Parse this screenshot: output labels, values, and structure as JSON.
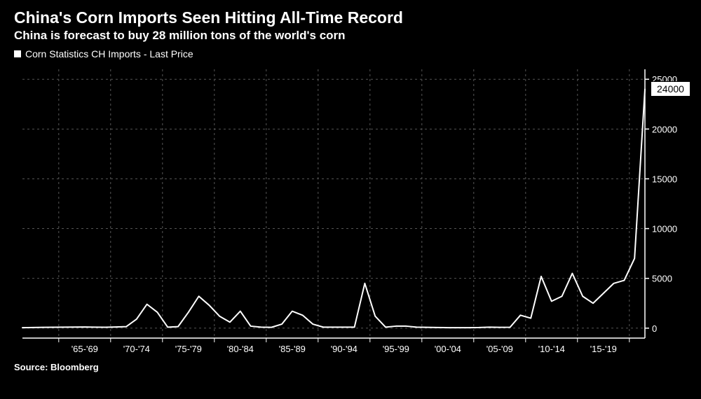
{
  "header": {
    "title": "China's Corn Imports Seen Hitting All-Time Record",
    "subtitle": "China is forecast to buy 28 million tons of the world's corn"
  },
  "legend": {
    "label": "Corn Statistics CH Imports - Last Price",
    "marker_color": "#ffffff"
  },
  "chart": {
    "type": "line",
    "background_color": "#000000",
    "line_color": "#ffffff",
    "line_width": 2,
    "grid_color": "#555555",
    "grid_dash": "3,4",
    "axis_color": "#ffffff",
    "tick_color": "#ffffff",
    "tick_fontsize": 13,
    "y": {
      "min": -1000,
      "max": 26000,
      "ticks": [
        0,
        5000,
        10000,
        15000,
        20000,
        25000
      ],
      "side": "right"
    },
    "x": {
      "group_labels": [
        "'65-'69",
        "'70-'74",
        "'75-'79",
        "'80-'84",
        "'85-'89",
        "'90-'94",
        "'95-'99",
        "'00-'04",
        "'05-'09",
        "'10-'14",
        "'15-'19"
      ],
      "years_start": 1961,
      "years_end": 2021
    },
    "last_value_badge": "24000",
    "data": [
      {
        "year": 1961,
        "value": 50
      },
      {
        "year": 1962,
        "value": 60
      },
      {
        "year": 1963,
        "value": 80
      },
      {
        "year": 1964,
        "value": 90
      },
      {
        "year": 1965,
        "value": 100
      },
      {
        "year": 1966,
        "value": 110
      },
      {
        "year": 1967,
        "value": 120
      },
      {
        "year": 1968,
        "value": 100
      },
      {
        "year": 1969,
        "value": 90
      },
      {
        "year": 1970,
        "value": 120
      },
      {
        "year": 1971,
        "value": 150
      },
      {
        "year": 1972,
        "value": 900
      },
      {
        "year": 1973,
        "value": 2400
      },
      {
        "year": 1974,
        "value": 1600
      },
      {
        "year": 1975,
        "value": 100
      },
      {
        "year": 1976,
        "value": 150
      },
      {
        "year": 1977,
        "value": 1600
      },
      {
        "year": 1978,
        "value": 3200
      },
      {
        "year": 1979,
        "value": 2300
      },
      {
        "year": 1980,
        "value": 1200
      },
      {
        "year": 1981,
        "value": 600
      },
      {
        "year": 1982,
        "value": 1700
      },
      {
        "year": 1983,
        "value": 200
      },
      {
        "year": 1984,
        "value": 100
      },
      {
        "year": 1985,
        "value": 80
      },
      {
        "year": 1986,
        "value": 400
      },
      {
        "year": 1987,
        "value": 1700
      },
      {
        "year": 1988,
        "value": 1300
      },
      {
        "year": 1989,
        "value": 400
      },
      {
        "year": 1990,
        "value": 100
      },
      {
        "year": 1991,
        "value": 100
      },
      {
        "year": 1992,
        "value": 100
      },
      {
        "year": 1993,
        "value": 100
      },
      {
        "year": 1994,
        "value": 4500
      },
      {
        "year": 1995,
        "value": 1200
      },
      {
        "year": 1996,
        "value": 100
      },
      {
        "year": 1997,
        "value": 200
      },
      {
        "year": 1998,
        "value": 200
      },
      {
        "year": 1999,
        "value": 100
      },
      {
        "year": 2000,
        "value": 80
      },
      {
        "year": 2001,
        "value": 60
      },
      {
        "year": 2002,
        "value": 50
      },
      {
        "year": 2003,
        "value": 50
      },
      {
        "year": 2004,
        "value": 50
      },
      {
        "year": 2005,
        "value": 60
      },
      {
        "year": 2006,
        "value": 100
      },
      {
        "year": 2007,
        "value": 80
      },
      {
        "year": 2008,
        "value": 90
      },
      {
        "year": 2009,
        "value": 1300
      },
      {
        "year": 2010,
        "value": 1000
      },
      {
        "year": 2011,
        "value": 5200
      },
      {
        "year": 2012,
        "value": 2700
      },
      {
        "year": 2013,
        "value": 3200
      },
      {
        "year": 2014,
        "value": 5500
      },
      {
        "year": 2015,
        "value": 3200
      },
      {
        "year": 2016,
        "value": 2500
      },
      {
        "year": 2017,
        "value": 3500
      },
      {
        "year": 2018,
        "value": 4500
      },
      {
        "year": 2019,
        "value": 4800
      },
      {
        "year": 2020,
        "value": 7000
      },
      {
        "year": 2021,
        "value": 24000
      }
    ]
  },
  "source": {
    "label": "Source:",
    "value": "Bloomberg"
  }
}
